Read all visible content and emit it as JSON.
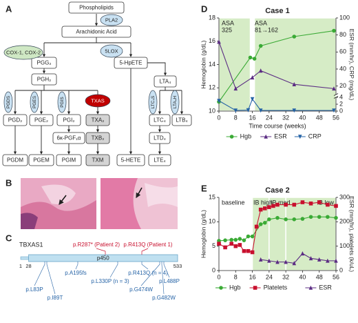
{
  "panel_labels": [
    "A",
    "B",
    "C",
    "D",
    "E"
  ],
  "pathway": {
    "nodes": [
      "Phospholipids",
      "Arachidonic Acid",
      "PGG₂",
      "PGH₂",
      "5-HpETE",
      "LTA₄",
      "PGD₂",
      "PGE₂",
      "PGI₂",
      "TXA₂",
      "6κ-PGF₁α",
      "TXB₂",
      "LTC₄",
      "LTD₄",
      "LTB₄",
      "PGDM",
      "PGEM",
      "PGIM",
      "TXM",
      "5-HETE",
      "LTE₄"
    ],
    "enzymes": [
      "PLA2",
      "COX-1, COX-2",
      "5LOX",
      "PGDS",
      "PGES",
      "PGIS",
      "TXAS",
      "LTC₄S",
      "LTA₄H"
    ]
  },
  "protein": {
    "gene": "TBXAS1",
    "domain": "p450",
    "positions": [
      1,
      28,
      533
    ],
    "patient_variants": [
      "p.R287* (Patient 2)",
      "p.R413Q (Patient 1)"
    ],
    "reported_variants": [
      "p.L83P",
      "p.I89T",
      "p.A195fs",
      "p.L330P (n = 3)",
      "p.R413Q (n = 4)",
      "p.G474W",
      "p.L488P",
      "p.G482W"
    ]
  },
  "chart_data": [
    {
      "type": "line",
      "title": "Case 1",
      "x_label": "Time course (weeks)",
      "y_label": "Hemoglobin (g/dL)",
      "y2_label": "ESR (mm/hr), CRP (mg/dL)",
      "xlim": [
        0,
        56
      ],
      "xticks": [
        0,
        8,
        16,
        24,
        32,
        40,
        48,
        56
      ],
      "ylim": [
        10,
        18
      ],
      "yticks": [
        10,
        12,
        14,
        16,
        18
      ],
      "y2lim": [
        0,
        100
      ],
      "y2_break": [
        4,
        10
      ],
      "y2ticks": [
        0,
        2,
        4,
        20,
        40,
        60,
        80,
        100
      ],
      "shade_spans": [
        [
          0,
          15
        ],
        [
          17,
          56
        ]
      ],
      "shade_color": "#d6ecc6",
      "annotations": [
        [
          "ASA",
          "325"
        ],
        [
          "ASA",
          "81→162"
        ]
      ],
      "legend": "bottom",
      "series": [
        {
          "name": "Hgb",
          "color": "#3aaa35",
          "marker": "circle",
          "x": [
            0,
            15,
            17,
            20,
            36,
            55
          ],
          "values": [
            10.8,
            14.6,
            14.5,
            15.6,
            16.4,
            16.9
          ]
        },
        {
          "name": "ESR",
          "color": "#5b2c83",
          "marker": "triangle",
          "axis": "y2",
          "x": [
            0,
            8,
            16,
            20,
            36,
            55
          ],
          "values": [
            72,
            17,
            30,
            38,
            22,
            17
          ]
        },
        {
          "name": "CRP",
          "color": "#2563a6",
          "marker": "triangle-down",
          "axis": "y2",
          "x": [
            0,
            8,
            14,
            16,
            20,
            36,
            55
          ],
          "values": [
            3,
            0.2,
            0.3,
            3.5,
            0.2,
            0.2,
            0.2
          ]
        }
      ]
    },
    {
      "type": "line",
      "title": "Case 2",
      "y_label": "Hemoglobin (g/dL)",
      "y2_label": "ESR (mm/hr), platelets (k/uL)",
      "xlim": [
        0,
        56
      ],
      "xticks": [
        0,
        8,
        16,
        24,
        32,
        40,
        48,
        56
      ],
      "ylim": [
        0,
        15
      ],
      "yticks": [
        0,
        5,
        10,
        15
      ],
      "y2lim": [
        0,
        300
      ],
      "y2ticks": [
        0,
        100,
        200,
        300
      ],
      "shade_spans": [
        [
          16,
          24
        ],
        [
          24,
          32
        ],
        [
          32,
          56
        ]
      ],
      "shade_color": "#d6ecc6",
      "annotations": [
        "baseline",
        "IB high",
        "IB med",
        "IB low"
      ],
      "legend": "bottom",
      "series": [
        {
          "name": "Hgb",
          "color": "#3aaa35",
          "marker": "circle",
          "x": [
            0,
            3,
            6,
            8,
            10,
            12,
            14,
            16,
            20,
            22,
            24,
            28,
            32,
            36,
            40,
            44,
            48,
            52,
            56
          ],
          "values": [
            6.1,
            6.2,
            6.3,
            6.3,
            6.5,
            6.2,
            7.0,
            7.0,
            9.5,
            9.8,
            10.5,
            10.8,
            10.5,
            10.5,
            10.6,
            11.0,
            11.0,
            11.0,
            10.8
          ]
        },
        {
          "name": "Platelets",
          "color": "#c8102e",
          "marker": "square",
          "axis": "y2",
          "x": [
            0,
            3,
            6,
            8,
            10,
            12,
            14,
            16,
            18,
            20,
            22,
            24,
            26,
            28,
            32,
            36,
            40,
            44,
            48,
            52,
            56
          ],
          "values": [
            110,
            95,
            110,
            100,
            105,
            80,
            80,
            75,
            180,
            250,
            255,
            260,
            265,
            270,
            270,
            270,
            280,
            275,
            280,
            270,
            265
          ]
        },
        {
          "name": "ESR",
          "color": "#5b2c83",
          "marker": "triangle",
          "axis": "y2",
          "x": [
            20,
            24,
            28,
            32,
            36,
            40,
            44,
            48,
            52,
            56
          ],
          "values": [
            45,
            40,
            35,
            35,
            30,
            70,
            50,
            45,
            40,
            40
          ]
        }
      ]
    }
  ]
}
